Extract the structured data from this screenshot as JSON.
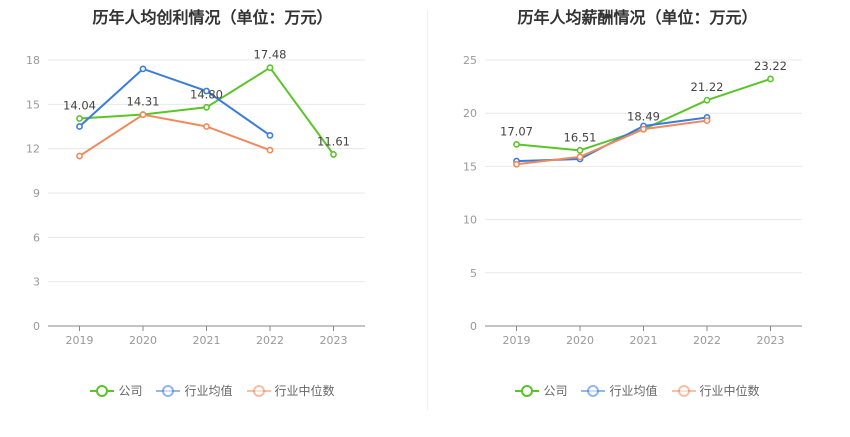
{
  "chart_data": [
    {
      "type": "line",
      "title": "历年人均创利情况（单位：万元）",
      "categories": [
        "2019",
        "2020",
        "2021",
        "2022",
        "2023"
      ],
      "ylim": [
        0,
        18
      ],
      "yticks": [
        0,
        3,
        6,
        9,
        12,
        15,
        18
      ],
      "grid": true,
      "legend_position": "bottom",
      "series": [
        {
          "name": "公司",
          "color": "#5cc42b",
          "values": [
            14.04,
            14.31,
            14.8,
            17.48,
            11.61
          ],
          "labels": [
            "14.04",
            "14.31",
            "14.80",
            "17.48",
            "11.61"
          ]
        },
        {
          "name": "行业均值",
          "color": "#3b7ddd",
          "values": [
            13.5,
            17.4,
            15.9,
            12.9,
            null
          ]
        },
        {
          "name": "行业中位数",
          "color": "#f08a5d",
          "values": [
            11.5,
            14.3,
            13.5,
            11.9,
            null
          ]
        }
      ]
    },
    {
      "type": "line",
      "title": "历年人均薪酬情况（单位：万元）",
      "categories": [
        "2019",
        "2020",
        "2021",
        "2022",
        "2023"
      ],
      "ylim": [
        0,
        25
      ],
      "yticks": [
        0,
        5,
        10,
        15,
        20,
        25
      ],
      "grid": true,
      "legend_position": "bottom",
      "series": [
        {
          "name": "公司",
          "color": "#5cc42b",
          "values": [
            17.07,
            16.51,
            18.49,
            21.22,
            23.22
          ],
          "labels": [
            "17.07",
            "16.51",
            "18.49",
            "21.22",
            "23.22"
          ]
        },
        {
          "name": "行业均值",
          "color": "#3b7ddd",
          "values": [
            15.5,
            15.7,
            18.8,
            19.6,
            null
          ]
        },
        {
          "name": "行业中位数",
          "color": "#f08a5d",
          "values": [
            15.2,
            15.9,
            18.5,
            19.3,
            null
          ]
        }
      ]
    }
  ]
}
